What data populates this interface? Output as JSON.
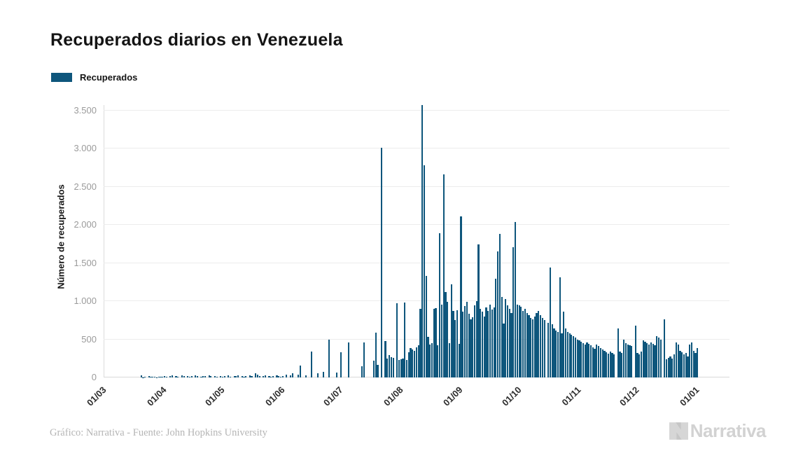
{
  "title": "Recuperados diarios en Venezuela",
  "legend": {
    "label": "Recuperados",
    "color": "#0E567C"
  },
  "y_axis": {
    "title": "Número de recuperados"
  },
  "footer": {
    "credit": "Gráfico: Narrativa - Fuente: John Hopkins University",
    "brand": "Narrativa"
  },
  "colors": {
    "bar": "#0E567C",
    "grid": "#ececec",
    "axis": "#dcdcdc",
    "y_tick_text": "#9b9b9b",
    "x_tick_text": "#2d2d2d",
    "credit_text": "#b5b5b5",
    "brand_text": "#d2d2d2"
  },
  "chart_data": {
    "type": "bar",
    "title": "Recuperados diarios en Venezuela",
    "xlabel": "",
    "ylabel": "Número de recuperados",
    "series_name": "Recuperados",
    "bar_color": "#0E567C",
    "ylim": [
      0,
      3583
    ],
    "grid": "horizontal",
    "legend_position": "top-left",
    "y_ticks": [
      {
        "value": 0,
        "label": "0"
      },
      {
        "value": 500,
        "label": "500"
      },
      {
        "value": 1000,
        "label": "1.000"
      },
      {
        "value": 1500,
        "label": "1.500"
      },
      {
        "value": 2000,
        "label": "2.000"
      },
      {
        "value": 2500,
        "label": "2.500"
      },
      {
        "value": 3000,
        "label": "3.000"
      },
      {
        "value": 3500,
        "label": "3.500"
      }
    ],
    "x_ticks": [
      {
        "day_index": 0,
        "label": "01/03"
      },
      {
        "day_index": 31,
        "label": "01/04"
      },
      {
        "day_index": 61,
        "label": "01/05"
      },
      {
        "day_index": 92,
        "label": "01/06"
      },
      {
        "day_index": 122,
        "label": "01/07"
      },
      {
        "day_index": 153,
        "label": "01/08"
      },
      {
        "day_index": 184,
        "label": "01/09"
      },
      {
        "day_index": 214,
        "label": "01/10"
      },
      {
        "day_index": 245,
        "label": "01/11"
      },
      {
        "day_index": 275,
        "label": "01/12"
      },
      {
        "day_index": 306,
        "label": "01/01"
      }
    ],
    "n_days": 307,
    "values": [
      0,
      0,
      0,
      0,
      0,
      0,
      0,
      0,
      0,
      0,
      0,
      0,
      0,
      0,
      0,
      0,
      0,
      0,
      0,
      25,
      5,
      12,
      0,
      15,
      8,
      10,
      12,
      5,
      8,
      10,
      6,
      20,
      12,
      0,
      15,
      25,
      0,
      18,
      8,
      0,
      30,
      22,
      0,
      15,
      8,
      20,
      0,
      25,
      18,
      0,
      8,
      15,
      22,
      0,
      28,
      15,
      0,
      18,
      12,
      0,
      15,
      10,
      18,
      0,
      25,
      12,
      0,
      20,
      15,
      30,
      0,
      22,
      10,
      15,
      0,
      25,
      18,
      0,
      60,
      35,
      20,
      0,
      15,
      28,
      0,
      22,
      12,
      18,
      0,
      30,
      15,
      10,
      20,
      0,
      35,
      0,
      25,
      55,
      0,
      0,
      40,
      160,
      0,
      0,
      30,
      0,
      0,
      340,
      0,
      0,
      60,
      0,
      0,
      70,
      0,
      0,
      500,
      0,
      0,
      0,
      65,
      0,
      330,
      0,
      0,
      0,
      460,
      0,
      0,
      0,
      0,
      0,
      0,
      150,
      460,
      0,
      0,
      0,
      0,
      220,
      590,
      165,
      0,
      3010,
      0,
      480,
      250,
      290,
      270,
      255,
      0,
      970,
      230,
      240,
      250,
      980,
      230,
      330,
      390,
      370,
      350,
      400,
      420,
      900,
      3570,
      2780,
      1330,
      535,
      430,
      450,
      900,
      910,
      420,
      1890,
      960,
      2660,
      1120,
      990,
      450,
      1220,
      870,
      750,
      880,
      440,
      2110,
      860,
      940,
      990,
      840,
      760,
      790,
      950,
      1000,
      1750,
      900,
      860,
      800,
      915,
      870,
      960,
      890,
      920,
      1295,
      1650,
      1880,
      1060,
      710,
      1030,
      950,
      900,
      850,
      1710,
      2040,
      955,
      950,
      930,
      870,
      900,
      850,
      820,
      780,
      760,
      800,
      850,
      870,
      820,
      780,
      750,
      0,
      720,
      1440,
      700,
      640,
      620,
      600,
      1310,
      580,
      860,
      640,
      600,
      580,
      560,
      540,
      520,
      500,
      490,
      470,
      450,
      430,
      460,
      440,
      420,
      400,
      380,
      430,
      410,
      390,
      370,
      350,
      330,
      310,
      340,
      320,
      300,
      0,
      640,
      340,
      320,
      500,
      450,
      430,
      420,
      410,
      0,
      680,
      320,
      300,
      340,
      490,
      470,
      450,
      430,
      460,
      440,
      420,
      540,
      520,
      500,
      0,
      760,
      240,
      260,
      280,
      250,
      300,
      460,
      430,
      350,
      330,
      300,
      320,
      280,
      430,
      460,
      350,
      320,
      390
    ]
  }
}
